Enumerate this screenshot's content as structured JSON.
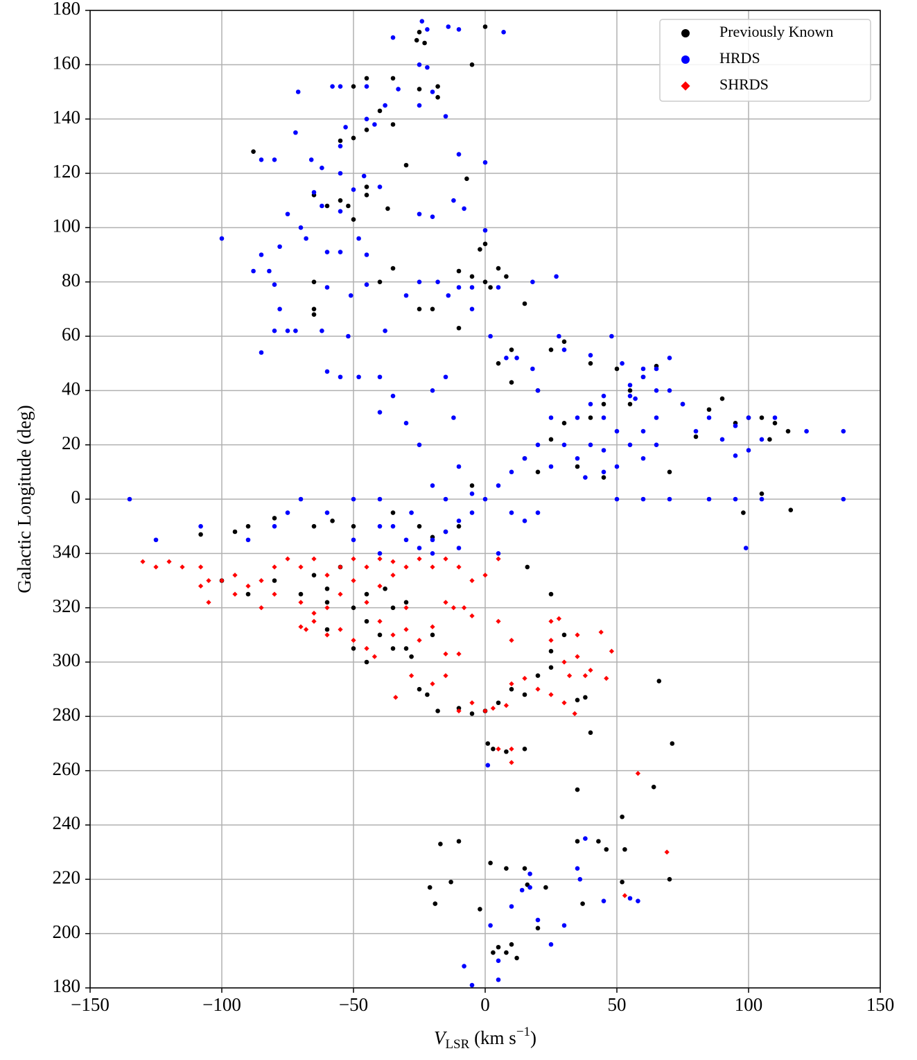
{
  "chart_data": {
    "type": "scatter",
    "xlabel": [
      "V",
      "LSR",
      " (km s",
      "−1",
      ")"
    ],
    "ylabel": "Galactic Longitude (deg)",
    "xlim": [
      -150,
      150
    ],
    "ylim": [
      -180,
      180
    ],
    "xticks": [
      {
        "value": -150,
        "label": "−150"
      },
      {
        "value": -100,
        "label": "−100"
      },
      {
        "value": -50,
        "label": "−50"
      },
      0,
      50,
      100,
      150
    ],
    "yticks": [
      180,
      160,
      140,
      120,
      100,
      80,
      60,
      40,
      20,
      0,
      {
        "value": -20,
        "label": "340"
      },
      {
        "value": -40,
        "label": "320"
      },
      {
        "value": -60,
        "label": "300"
      },
      {
        "value": -80,
        "label": "280"
      },
      {
        "value": -100,
        "label": "260"
      },
      {
        "value": -120,
        "label": "240"
      },
      {
        "value": -140,
        "label": "220"
      },
      {
        "value": -160,
        "label": "200"
      },
      {
        "value": -180,
        "label": "180"
      }
    ],
    "grid": true,
    "legend": "upper right",
    "series": [
      {
        "name": "Previously Known",
        "color": "#000000",
        "marker": "circle",
        "x": [
          0,
          -23,
          -26,
          -25,
          -5,
          -35,
          -45,
          -50,
          -18,
          -25,
          -18,
          -40,
          -35,
          -45,
          -55,
          -50,
          -88,
          -30,
          -7,
          -45,
          -45,
          -55,
          -60,
          -65,
          -52,
          -50,
          -37,
          -35,
          -65,
          -65,
          -65,
          -40,
          -10,
          -5,
          0,
          2,
          8,
          5,
          0,
          -2,
          -25,
          -20,
          -10,
          15,
          10,
          5,
          10,
          20,
          30,
          25,
          40,
          50,
          65,
          60,
          55,
          45,
          40,
          30,
          25,
          15,
          20,
          35,
          45,
          70,
          55,
          75,
          85,
          90,
          80,
          95,
          100,
          105,
          110,
          115,
          108,
          105,
          116,
          98,
          -5,
          -10,
          -15,
          -20,
          -25,
          -35,
          -50,
          -58,
          -65,
          -80,
          -90,
          -95,
          -108,
          -100,
          -90,
          -80,
          -70,
          -60,
          -50,
          -45,
          -38,
          -55,
          -65,
          -60,
          -40,
          -35,
          -30,
          -45,
          -50,
          -60,
          -45,
          -30,
          -25,
          -22,
          -18,
          -5,
          -10,
          0,
          5,
          10,
          15,
          20,
          25,
          30,
          -20,
          -35,
          -28,
          1,
          3,
          8,
          15,
          35,
          38,
          40,
          66,
          71,
          35,
          64,
          52,
          35,
          43,
          53,
          46,
          -10,
          -13,
          -17,
          -21,
          -19,
          -2,
          2,
          8,
          15,
          23,
          16,
          20,
          5,
          3,
          8,
          12,
          10,
          70,
          52,
          37,
          25,
          16,
          25
        ],
        "values": [
          174,
          168,
          169,
          172,
          160,
          155,
          155,
          152,
          152,
          151,
          148,
          143,
          138,
          136,
          132,
          133,
          128,
          123,
          118,
          115,
          112,
          110,
          108,
          112,
          108,
          103,
          107,
          85,
          80,
          70,
          68,
          80,
          84,
          82,
          80,
          78,
          82,
          85,
          94,
          92,
          70,
          70,
          63,
          72,
          55,
          50,
          43,
          40,
          58,
          55,
          50,
          48,
          49,
          45,
          40,
          35,
          30,
          28,
          22,
          15,
          10,
          12,
          8,
          10,
          35,
          35,
          33,
          37,
          23,
          28,
          30,
          30,
          28,
          25,
          22,
          2,
          -4,
          -5,
          5,
          -10,
          -12,
          -14,
          -10,
          -5,
          -10,
          -8,
          -10,
          -7,
          -10,
          -12,
          -13,
          -30,
          -35,
          -30,
          -35,
          -38,
          -40,
          -35,
          -33,
          -25,
          -28,
          -33,
          -50,
          -40,
          -38,
          -45,
          -55,
          -48,
          -60,
          -55,
          -70,
          -72,
          -78,
          -79,
          -77,
          -78,
          -75,
          -70,
          -72,
          -65,
          -62,
          -50,
          -50,
          -55,
          -58,
          -90,
          -92,
          -93,
          -92,
          -74,
          -73,
          -86,
          -67,
          -90,
          -107,
          -106,
          -117,
          -126,
          -126,
          -129,
          -129,
          -126,
          -141,
          -127,
          -143,
          -149,
          -151,
          -134,
          -136,
          -136,
          -143,
          -142,
          -158,
          -165,
          -167,
          -167,
          -169,
          -164,
          -140,
          -141,
          -149,
          -56,
          -25,
          -35
        ]
      },
      {
        "name": "HRDS",
        "color": "#0000ff",
        "marker": "circle",
        "x": [
          -24,
          -22,
          -14,
          -10,
          7,
          -35,
          -25,
          -22,
          -55,
          -58,
          -45,
          -33,
          -20,
          -71,
          -25,
          -38,
          -45,
          -15,
          -53,
          -72,
          -42,
          -55,
          -10,
          0,
          -85,
          -66,
          -80,
          -62,
          -55,
          -46,
          -40,
          -65,
          -50,
          -62,
          -55,
          -75,
          -70,
          -68,
          -85,
          -78,
          -82,
          -100,
          -88,
          -60,
          -55,
          -48,
          -45,
          -80,
          -78,
          -75,
          -72,
          -62,
          -85,
          -80,
          -52,
          -38,
          -60,
          -51,
          -45,
          -25,
          -18,
          0,
          -12,
          -8,
          -25,
          -20,
          27,
          18,
          -10,
          -5,
          5,
          -14,
          -30,
          -5,
          2,
          8,
          12,
          18,
          20,
          28,
          30,
          40,
          48,
          52,
          60,
          55,
          65,
          55,
          45,
          40,
          35,
          25,
          30,
          20,
          15,
          25,
          35,
          45,
          50,
          38,
          10,
          5,
          0,
          -5,
          -10,
          -15,
          -20,
          -25,
          -30,
          -35,
          -40,
          -50,
          -60,
          -75,
          -80,
          -90,
          -108,
          -125,
          -135,
          -70,
          -50,
          -40,
          -28,
          -15,
          50,
          60,
          70,
          85,
          95,
          105,
          136,
          136,
          122,
          110,
          100,
          95,
          85,
          90,
          80,
          105,
          100,
          95,
          75,
          70,
          65,
          70,
          60,
          57,
          65,
          60,
          55,
          50,
          45,
          40,
          45,
          60,
          65,
          -60,
          -55,
          -48,
          -40,
          -35,
          -40,
          -30,
          -20,
          -15,
          -12,
          -25,
          -20,
          -10,
          -5,
          -40,
          -20,
          10,
          15,
          20,
          5,
          -10,
          99,
          30,
          2,
          5,
          5,
          -5,
          -8,
          10,
          17,
          20,
          25,
          36,
          35,
          38,
          45,
          55,
          58,
          17,
          14,
          1
        ],
        "values": [
          176,
          173,
          174,
          173,
          172,
          170,
          160,
          159,
          152,
          152,
          152,
          151,
          150,
          150,
          145,
          145,
          140,
          141,
          137,
          135,
          138,
          130,
          127,
          124,
          125,
          125,
          125,
          122,
          120,
          119,
          115,
          113,
          114,
          108,
          106,
          105,
          100,
          96,
          90,
          93,
          84,
          96,
          84,
          91,
          91,
          96,
          90,
          79,
          70,
          62,
          62,
          62,
          54,
          62,
          60,
          62,
          78,
          75,
          79,
          80,
          80,
          99,
          110,
          107,
          105,
          104,
          82,
          80,
          78,
          78,
          78,
          75,
          75,
          70,
          60,
          52,
          52,
          48,
          40,
          60,
          55,
          53,
          60,
          50,
          45,
          42,
          40,
          38,
          38,
          35,
          30,
          30,
          20,
          20,
          15,
          12,
          15,
          18,
          12,
          8,
          10,
          5,
          0,
          -5,
          -8,
          -12,
          -15,
          -18,
          -15,
          -10,
          -20,
          -15,
          -5,
          -5,
          -10,
          -15,
          -10,
          -15,
          0,
          0,
          0,
          0,
          -5,
          0,
          0,
          0,
          0,
          0,
          0,
          0,
          0,
          25,
          25,
          30,
          30,
          27,
          30,
          22,
          25,
          22,
          18,
          16,
          35,
          40,
          48,
          52,
          48,
          37,
          30,
          25,
          20,
          25,
          30,
          20,
          10,
          15,
          20,
          47,
          45,
          45,
          45,
          38,
          32,
          28,
          40,
          45,
          30,
          20,
          5,
          12,
          2,
          -10,
          -20,
          -5,
          -8,
          -5,
          -20,
          -18,
          -18,
          -157,
          -157,
          -170,
          -177,
          -179,
          -172,
          -150,
          -143,
          -155,
          -164,
          -140,
          -136,
          -125,
          -148,
          -147,
          -148,
          -138,
          -144,
          -98
        ]
      },
      {
        "name": "SHRDS",
        "color": "#ff0000",
        "marker": "diamond",
        "x": [
          -130,
          -125,
          -120,
          -115,
          -108,
          -105,
          -100,
          -95,
          -90,
          -85,
          -80,
          -75,
          -70,
          -65,
          -60,
          -55,
          -50,
          -45,
          -40,
          -35,
          -30,
          -25,
          -20,
          -15,
          -10,
          -5,
          0,
          5,
          -105,
          -108,
          -95,
          -85,
          -80,
          -70,
          -65,
          -60,
          -55,
          -50,
          -45,
          -40,
          -35,
          -30,
          -70,
          -68,
          -65,
          -60,
          -55,
          -50,
          -45,
          -42,
          -40,
          -35,
          -30,
          -25,
          -20,
          -15,
          -12,
          -8,
          -5,
          -15,
          -10,
          5,
          10,
          -34,
          -28,
          -20,
          -15,
          -10,
          -5,
          0,
          3,
          8,
          10,
          15,
          25,
          28,
          25,
          35,
          44,
          48,
          30,
          35,
          40,
          32,
          38,
          46,
          20,
          25,
          30,
          34,
          5,
          10,
          10,
          58,
          69,
          53
        ],
        "values": [
          -23,
          -25,
          -23,
          -25,
          -25,
          -30,
          -30,
          -28,
          -32,
          -30,
          -25,
          -22,
          -25,
          -22,
          -28,
          -25,
          -22,
          -25,
          -22,
          -23,
          -25,
          -22,
          -25,
          -22,
          -25,
          -30,
          -28,
          -22,
          -38,
          -32,
          -35,
          -40,
          -35,
          -38,
          -42,
          -40,
          -35,
          -30,
          -38,
          -32,
          -28,
          -40,
          -47,
          -48,
          -45,
          -50,
          -48,
          -52,
          -55,
          -58,
          -45,
          -50,
          -48,
          -52,
          -47,
          -38,
          -40,
          -40,
          -43,
          -57,
          -57,
          -45,
          -52,
          -73,
          -65,
          -68,
          -65,
          -78,
          -75,
          -78,
          -77,
          -76,
          -68,
          -66,
          -45,
          -44,
          -52,
          -50,
          -49,
          -56,
          -60,
          -58,
          -63,
          -65,
          -65,
          -66,
          -70,
          -72,
          -75,
          -79,
          -92,
          -92,
          -97,
          -101,
          -130,
          -146
        ]
      }
    ]
  }
}
